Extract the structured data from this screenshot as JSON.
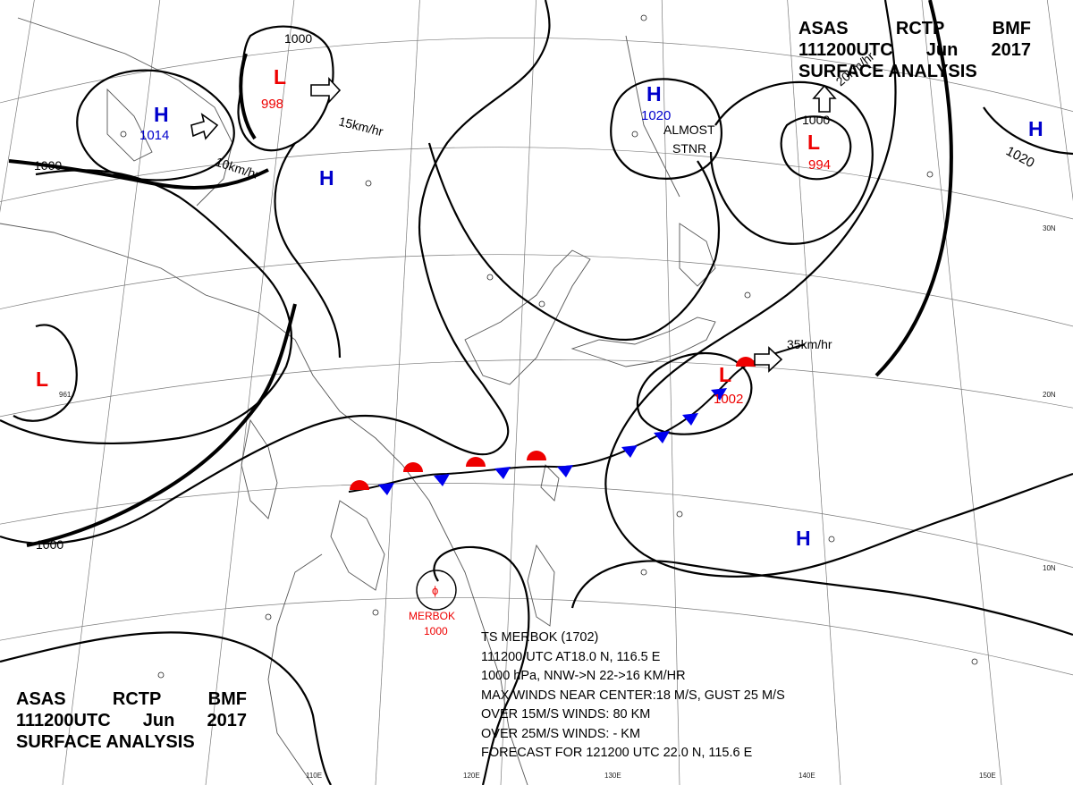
{
  "header": {
    "line1": [
      "ASAS",
      "RCTP",
      "BMF"
    ],
    "line2": [
      "111200UTC",
      "Jun",
      "2017"
    ],
    "line3": "SURFACE ANALYSIS"
  },
  "systems": [
    {
      "type": "H",
      "label": "H",
      "value": "1014",
      "color": "#0000cc"
    },
    {
      "type": "L",
      "label": "L",
      "value": "998",
      "color": "#ee0000"
    },
    {
      "type": "H",
      "label": "H",
      "value": "",
      "color": "#0000cc"
    },
    {
      "type": "H",
      "label": "H",
      "value": "1020",
      "color": "#0000cc"
    },
    {
      "type": "L",
      "label": "L",
      "value": "994",
      "color": "#ee0000"
    },
    {
      "type": "H",
      "label": "H",
      "value": "1020",
      "color": "#0000cc"
    },
    {
      "type": "L",
      "label": "L",
      "value": "961",
      "color": "#ee0000"
    },
    {
      "type": "L",
      "label": "L",
      "value": "1002",
      "color": "#ee0000"
    },
    {
      "type": "H",
      "label": "H",
      "value": "",
      "color": "#0000cc"
    }
  ],
  "isobar_labels": [
    "1000",
    "1000",
    "1000",
    "1000"
  ],
  "motion_labels": {
    "l998": "15km/hr",
    "h1014": "10km/hr",
    "l994": "20km/hr",
    "l1002": "35km/hr",
    "h1020": "ALMOST",
    "h1020b": "STNR"
  },
  "typhoon": {
    "name": "MERBOK",
    "pressure": "1000",
    "symbol": "ϕ"
  },
  "latitude_labels": [
    "30N",
    "20N",
    "10N"
  ],
  "longitude_labels": [
    "110E",
    "120E",
    "130E",
    "140E",
    "150E"
  ],
  "storm_info": {
    "line1": "TS MERBOK  (1702)",
    "line2": "111200 UTC  AT18.0 N, 116.5 E",
    "line3": "1000 hPa, NNW->N  22->16 KM/HR",
    "line4": "MAX WINDS NEAR CENTER:18 M/S, GUST 25 M/S",
    "line5": "OVER 15M/S WINDS: 80 KM",
    "line6": "OVER 25M/S WINDS: - KM",
    "line7": "FORECAST FOR 121200 UTC 22.0 N, 115.6 E"
  },
  "colors": {
    "high": "#0000cc",
    "low": "#ee0000",
    "warm_front": "#ee0000",
    "cold_front": "#0000ee"
  }
}
